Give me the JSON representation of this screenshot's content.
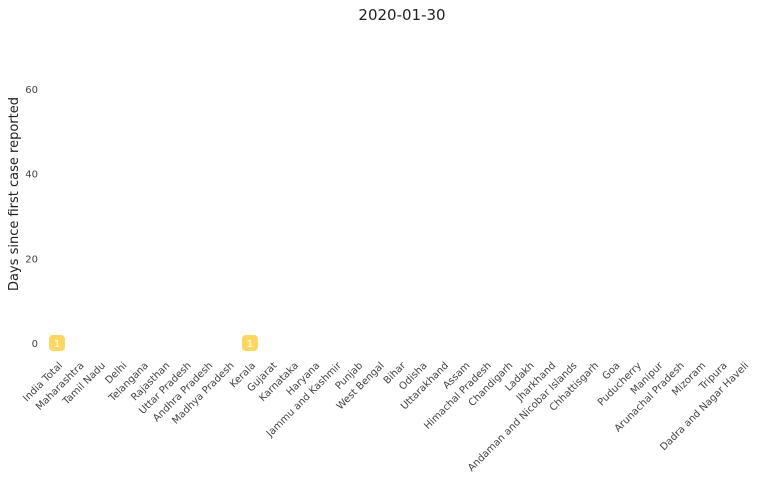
{
  "chart_data": {
    "type": "scatter",
    "title": "2020-01-30",
    "xlabel": "",
    "ylabel": "Days since first case reported",
    "ylim": [
      -4,
      68
    ],
    "yticks": [
      0,
      20,
      40,
      60
    ],
    "grid": false,
    "legend": "none",
    "categories": [
      "India Total",
      "Maharashtra",
      "Tamil Nadu",
      "Delhi",
      "Telangana",
      "Rajasthan",
      "Uttar Pradesh",
      "Andhra Pradesh",
      "Madhya Pradesh",
      "Kerala",
      "Gujarat",
      "Karnataka",
      "Haryana",
      "Jammu and Kashmir",
      "Punjab",
      "West Bengal",
      "Bihar",
      "Odisha",
      "Uttarakhand",
      "Assam",
      "Himachal Pradesh",
      "Chandigarh",
      "Ladakh",
      "Jharkhand",
      "Andaman and Nicobar Islands",
      "Chhattisgarh",
      "Goa",
      "Puducherry",
      "Manipur",
      "Arunachal Pradesh",
      "Mizoram",
      "Tripura",
      "Dadra and Nagar Haveli"
    ],
    "points": [
      {
        "category": "India Total",
        "y": 0,
        "label": "1"
      },
      {
        "category": "Kerala",
        "y": 0,
        "label": "1"
      }
    ],
    "marker_color": "#FDD663"
  }
}
